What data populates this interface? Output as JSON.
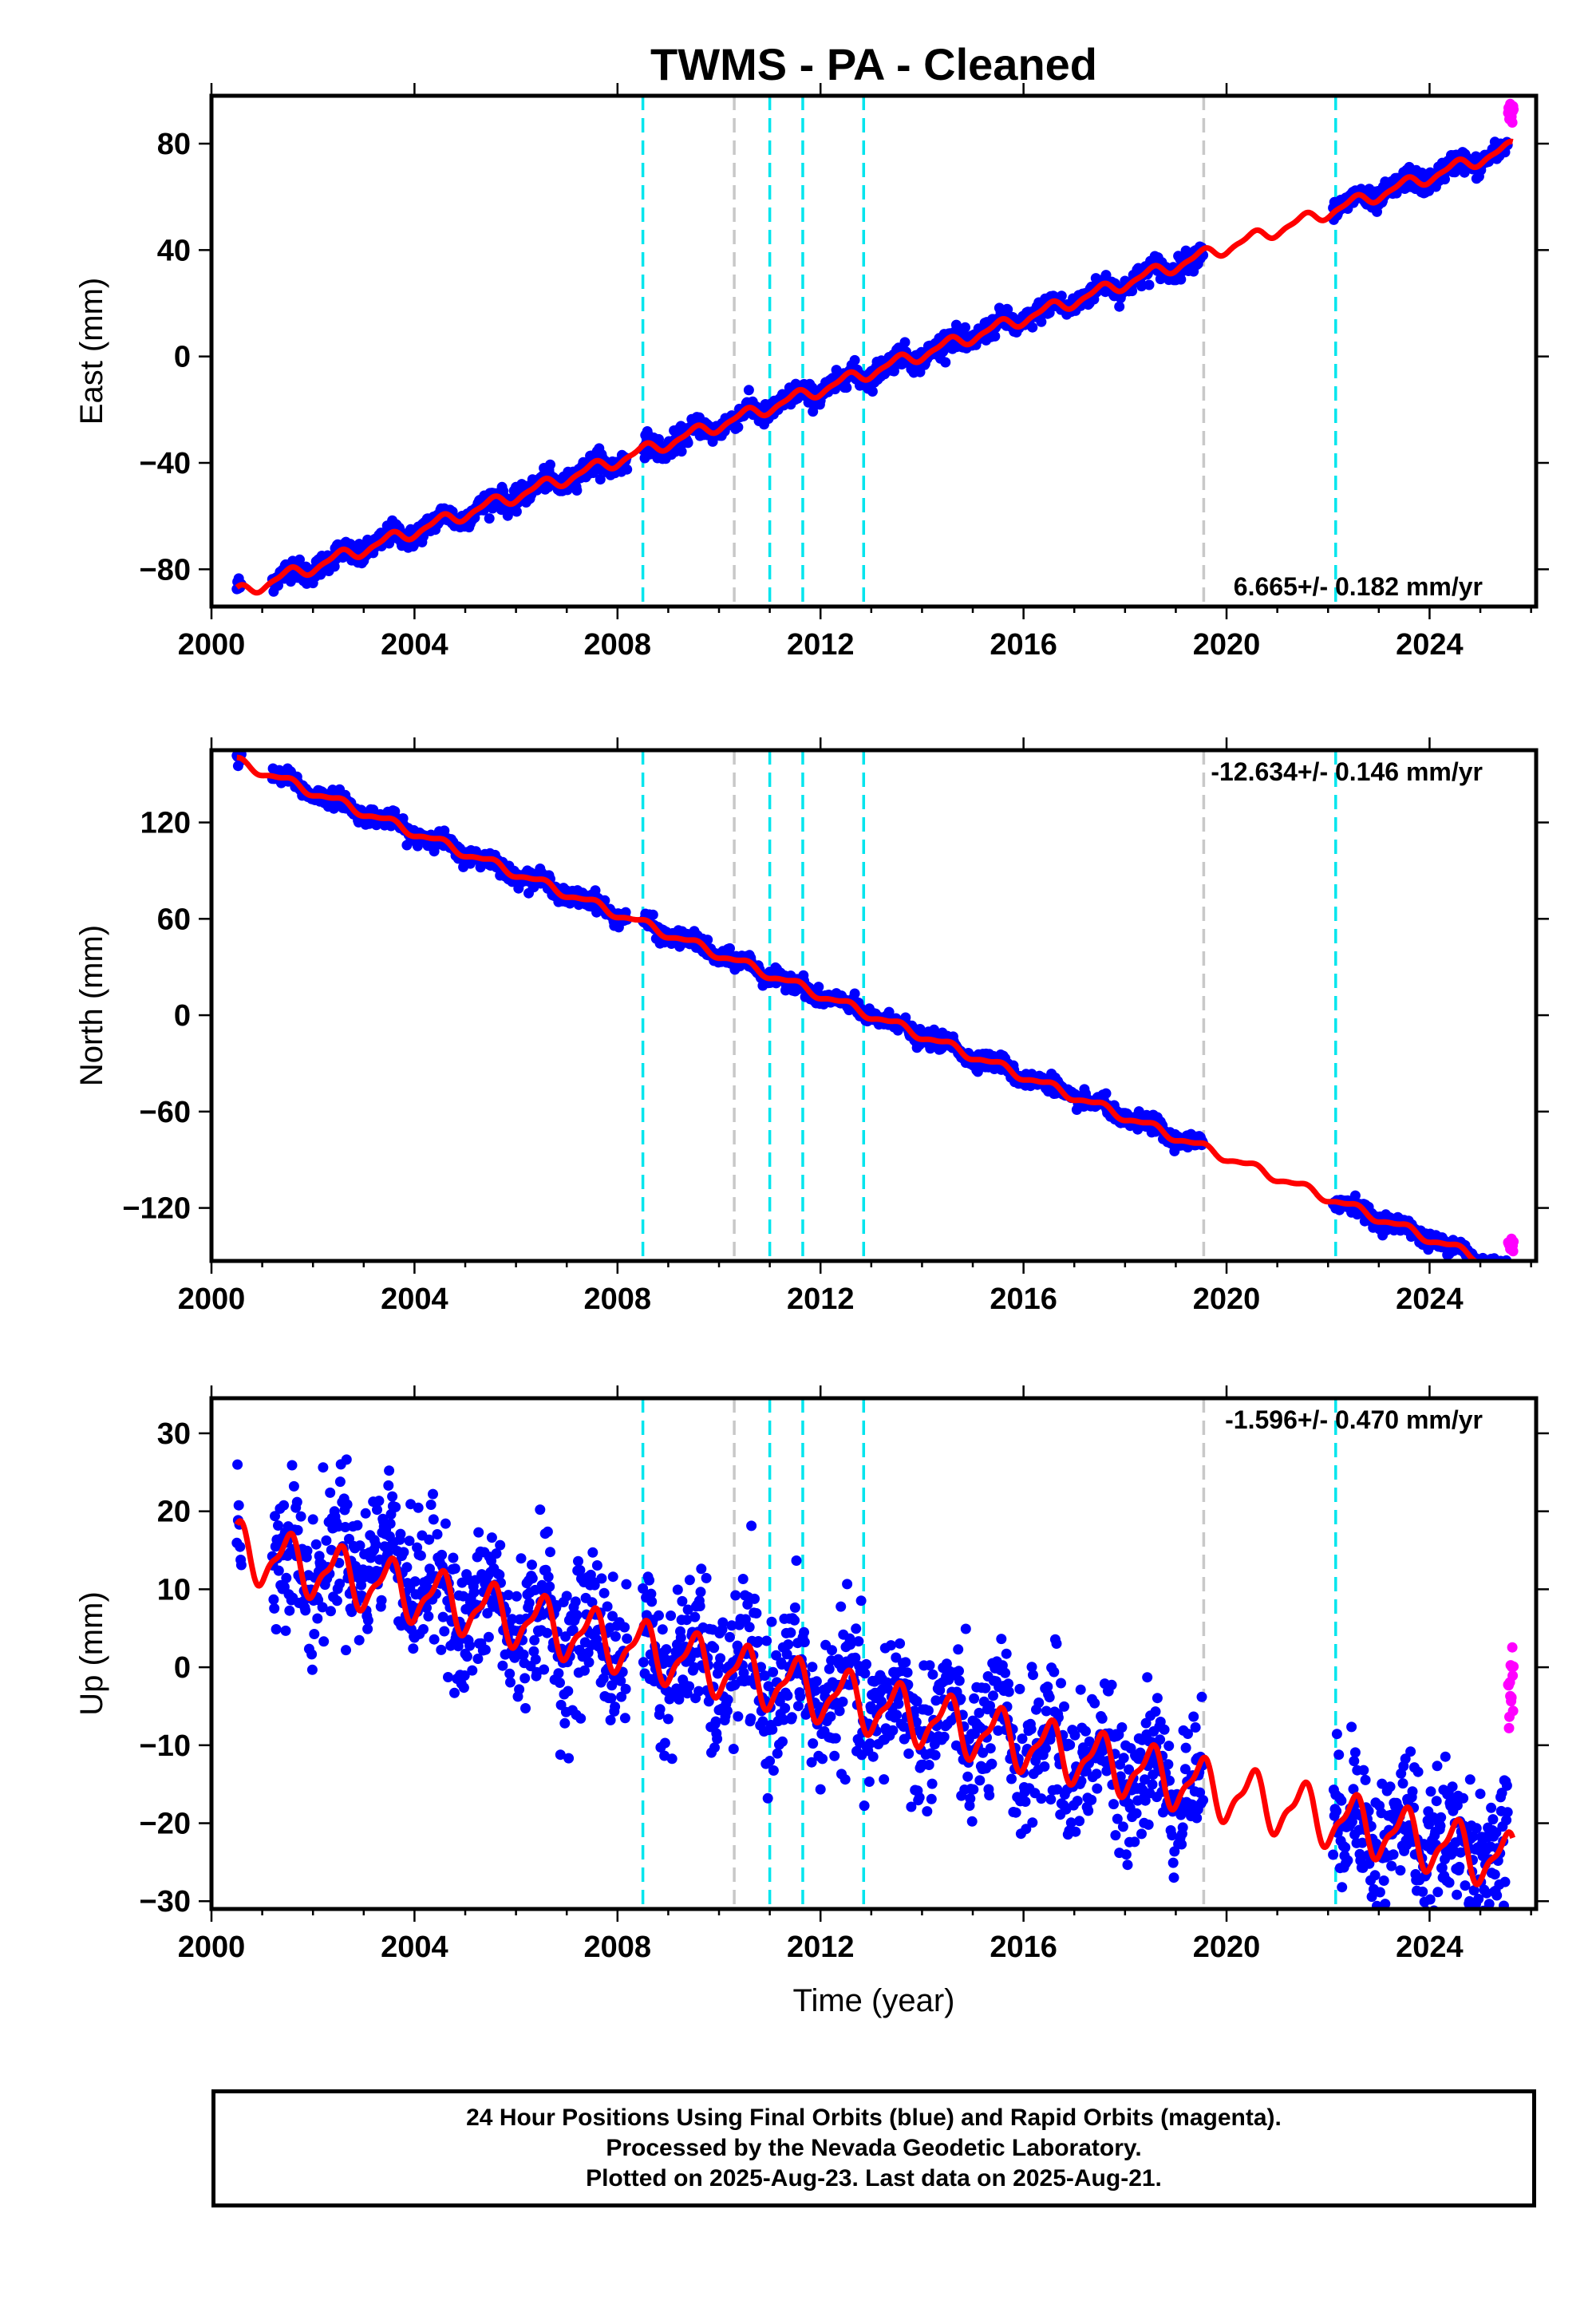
{
  "title": "TWMS  - PA - Cleaned",
  "colors": {
    "final_orbits": "#0000ff",
    "rapid_orbits": "#ff00ff",
    "model": "#ff0000",
    "equipment_change": "#00e5ee",
    "other_change": "#c8c8c8"
  },
  "chart_data": [
    {
      "type": "scatter",
      "ylabel": "East (mm)",
      "xlabel": "",
      "xlim": [
        2000.0,
        2026.1
      ],
      "ylim": [
        -94,
        98
      ],
      "yticks": [
        -80,
        -40,
        0,
        40,
        80
      ],
      "ytick_labels": [
        "−80",
        "−40",
        "0",
        "40",
        "80"
      ],
      "xticks": [
        2000,
        2004,
        2008,
        2012,
        2016,
        2020,
        2024
      ],
      "xtick_labels": [
        "2000",
        "2004",
        "2008",
        "2012",
        "2016",
        "2020",
        "2024"
      ],
      "rate": "6.665+/- 0.182 mm/yr",
      "rate_position": "bottom-right",
      "model": {
        "start_year": 2000.5,
        "start_value": -89,
        "rate_mm_per_yr": 6.665,
        "seasonal_amplitude_mm": 2.2
      },
      "final_orbits": {
        "noise_mm": 2.0,
        "gaps": [
          [
            2008.2,
            2008.5
          ],
          [
            2019.55,
            2022.1
          ]
        ]
      },
      "rapid_orbits": {
        "last_value_mm": 92
      },
      "cyan_lines": [
        2008.5,
        2011.0,
        2011.65,
        2012.85,
        2022.15
      ],
      "gray_lines": [
        2010.3,
        2019.55
      ]
    },
    {
      "type": "scatter",
      "ylabel": "North (mm)",
      "xlabel": "",
      "xlim": [
        2000.0,
        2026.1
      ],
      "ylim": [
        -153,
        165
      ],
      "yticks": [
        -120,
        -60,
        0,
        60,
        120
      ],
      "ytick_labels": [
        "−120",
        "−60",
        "0",
        "60",
        "120"
      ],
      "xticks": [
        2000,
        2004,
        2008,
        2012,
        2016,
        2020,
        2024
      ],
      "xtick_labels": [
        "2000",
        "2004",
        "2008",
        "2012",
        "2016",
        "2020",
        "2024"
      ],
      "rate": "-12.634+/- 0.146 mm/yr",
      "rate_position": "top-right",
      "model": {
        "start_year": 2000.5,
        "start_value": 158,
        "rate_mm_per_yr": -12.634,
        "seasonal_amplitude_mm": 2.5
      },
      "final_orbits": {
        "noise_mm": 2.5,
        "gaps": [
          [
            2008.2,
            2008.5
          ],
          [
            2019.55,
            2022.1
          ]
        ]
      },
      "rapid_orbits": {
        "last_value_mm": -143
      },
      "cyan_lines": [
        2008.5,
        2011.0,
        2011.65,
        2012.85,
        2022.15
      ],
      "gray_lines": [
        2010.3,
        2019.55
      ]
    },
    {
      "type": "scatter",
      "ylabel": "Up (mm)",
      "xlabel": "Time (year)",
      "xlim": [
        2000.0,
        2026.1
      ],
      "ylim": [
        -31,
        34.5
      ],
      "yticks": [
        -30,
        -20,
        -10,
        0,
        10,
        20,
        30
      ],
      "ytick_labels": [
        "−30",
        "−20",
        "−10",
        "0",
        "10",
        "20",
        "30"
      ],
      "xticks": [
        2000,
        2004,
        2008,
        2012,
        2016,
        2020,
        2024
      ],
      "xtick_labels": [
        "2000",
        "2004",
        "2008",
        "2012",
        "2016",
        "2020",
        "2024"
      ],
      "rate": "-1.596+/- 0.470 mm/yr",
      "rate_position": "top-right",
      "model": {
        "start_year": 2000.5,
        "start_value": 15,
        "rate_mm_per_yr": -1.596,
        "seasonal_amplitude_mm": 3.3
      },
      "final_orbits": {
        "noise_mm": 4.5,
        "gaps": [
          [
            2008.2,
            2008.5
          ],
          [
            2019.55,
            2022.1
          ]
        ]
      },
      "rapid_orbits": {
        "last_value_mm": -2
      },
      "cyan_lines": [
        2008.5,
        2011.0,
        2011.65,
        2012.85,
        2022.15
      ],
      "gray_lines": [
        2010.3,
        2019.55
      ]
    }
  ],
  "caption": {
    "line1": "24 Hour Positions Using Final Orbits (blue) and Rapid Orbits (magenta).",
    "line2": "Processed by the Nevada Geodetic Laboratory.",
    "line3": "Plotted on 2025-Aug-23. Last data on 2025-Aug-21."
  }
}
